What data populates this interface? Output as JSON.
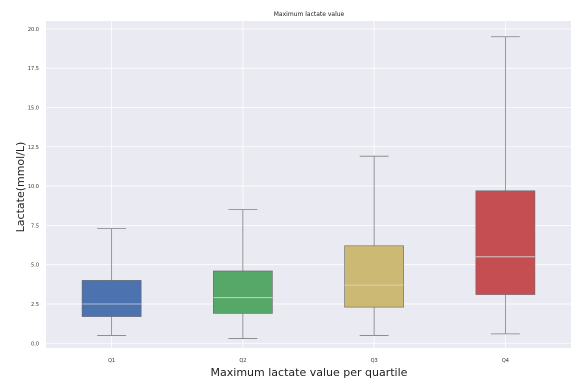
{
  "chart_data": {
    "type": "box",
    "title": "Maximum lactate value",
    "xlabel": "Maximum lactate value per quartile",
    "ylabel": "Lactate(mmol/L)",
    "ylim": [
      -0.3,
      20.5
    ],
    "yticks": [
      "0.0",
      "2.5",
      "5.0",
      "7.5",
      "10.0",
      "12.5",
      "15.0",
      "17.5",
      "20.0"
    ],
    "grid": true,
    "categories": [
      "Q1",
      "Q2",
      "Q3",
      "Q4"
    ],
    "boxes": [
      {
        "category": "Q1",
        "whisker_low": 0.5,
        "q1": 1.7,
        "median": 2.5,
        "q3": 4.0,
        "whisker_high": 7.3,
        "color": "#4c72b0"
      },
      {
        "category": "Q2",
        "whisker_low": 0.3,
        "q1": 1.9,
        "median": 2.9,
        "q3": 4.6,
        "whisker_high": 8.5,
        "color": "#55a868"
      },
      {
        "category": "Q3",
        "whisker_low": 0.5,
        "q1": 2.3,
        "median": 3.7,
        "q3": 6.2,
        "whisker_high": 11.9,
        "color": "#ccb974"
      },
      {
        "category": "Q4",
        "whisker_low": 0.6,
        "q1": 3.1,
        "median": 5.5,
        "q3": 9.7,
        "whisker_high": 19.5,
        "color": "#c44e52"
      }
    ],
    "colors": {
      "background": "#eaeaf2",
      "grid": "#ffffff",
      "whisker": "#808080",
      "median": "#d9d9d9"
    }
  }
}
